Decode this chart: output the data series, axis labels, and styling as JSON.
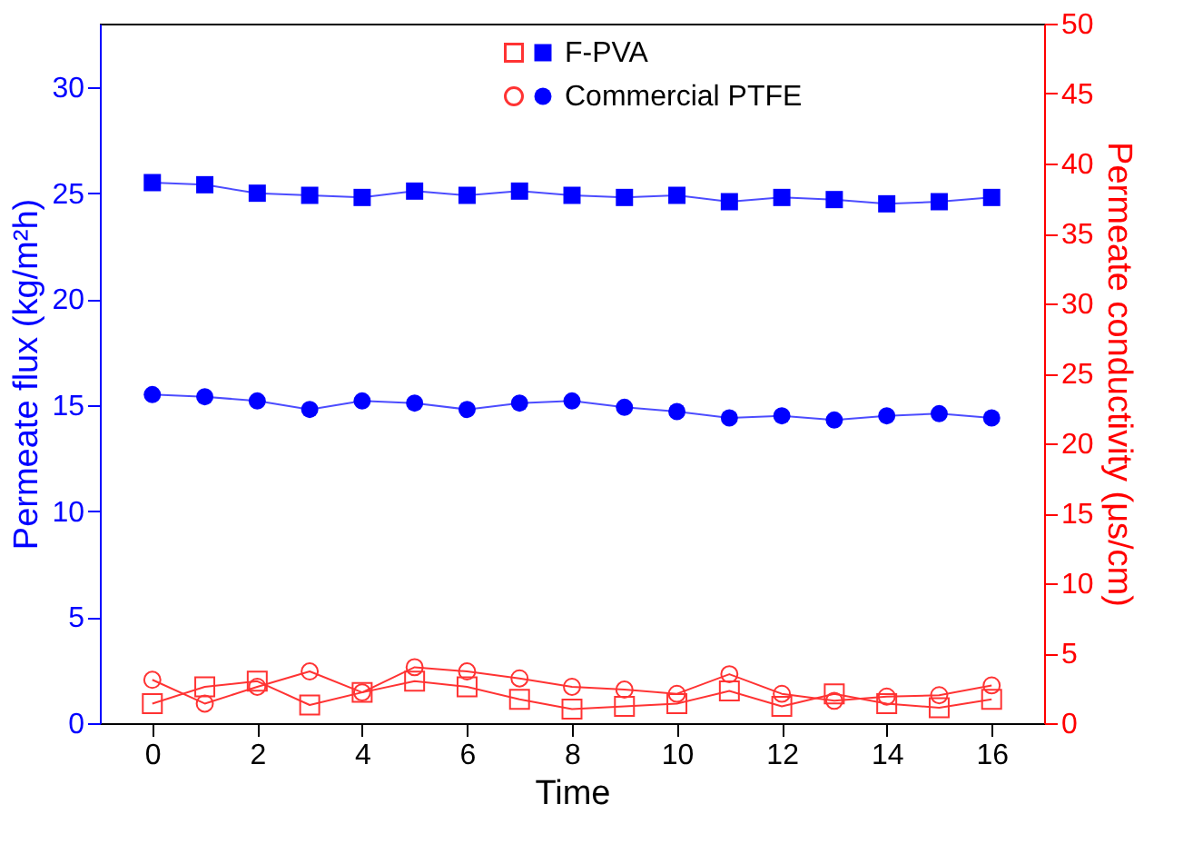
{
  "chart_data": {
    "type": "line",
    "xlabel": "Time",
    "ylabel": "Permeate flux (kg/m²h)",
    "y2label": "Permeate conductivity (μs/cm)",
    "x": [
      0,
      1,
      2,
      3,
      4,
      5,
      6,
      7,
      8,
      9,
      10,
      11,
      12,
      13,
      14,
      15,
      16
    ],
    "xlim": [
      -1,
      17
    ],
    "xticks": [
      0,
      2,
      4,
      6,
      8,
      10,
      12,
      14,
      16
    ],
    "ylim": [
      0,
      33
    ],
    "yticks": [
      0,
      5,
      10,
      15,
      20,
      25,
      30
    ],
    "y2lim": [
      0,
      50
    ],
    "y2ticks": [
      0,
      5,
      10,
      15,
      20,
      25,
      30,
      35,
      40,
      45,
      50
    ],
    "grid": false,
    "legend": "top right",
    "series": [
      {
        "name": "F-PVA",
        "color": "#0000ff",
        "marker": "square",
        "values": [
          25.5,
          25.4,
          25.0,
          24.9,
          24.8,
          25.1,
          24.9,
          25.1,
          24.9,
          24.8,
          24.9,
          24.6,
          24.8,
          24.7,
          24.5,
          24.6,
          24.8
        ]
      },
      {
        "name": "Commercial PTFE",
        "color": "#0000ff",
        "marker": "circle",
        "values": [
          15.5,
          15.4,
          15.2,
          14.8,
          15.2,
          15.1,
          14.8,
          15.1,
          15.2,
          14.9,
          14.7,
          14.4,
          14.5,
          14.3,
          14.5,
          14.6,
          14.4
        ]
      },
      {
        "color": "#ff3333",
        "marker": "square",
        "axis": "y2",
        "values": [
          1.4,
          2.6,
          3.0,
          1.3,
          2.2,
          3.0,
          2.6,
          1.7,
          1.0,
          1.2,
          1.4,
          2.3,
          1.2,
          2.1,
          1.4,
          1.1,
          1.7
        ]
      },
      {
        "color": "#ff3333",
        "marker": "circle",
        "axis": "y2",
        "values": [
          3.1,
          1.4,
          2.6,
          3.7,
          2.2,
          4.0,
          3.7,
          3.2,
          2.6,
          2.4,
          2.1,
          3.5,
          2.1,
          1.6,
          1.9,
          2.0,
          2.7
        ]
      }
    ]
  }
}
